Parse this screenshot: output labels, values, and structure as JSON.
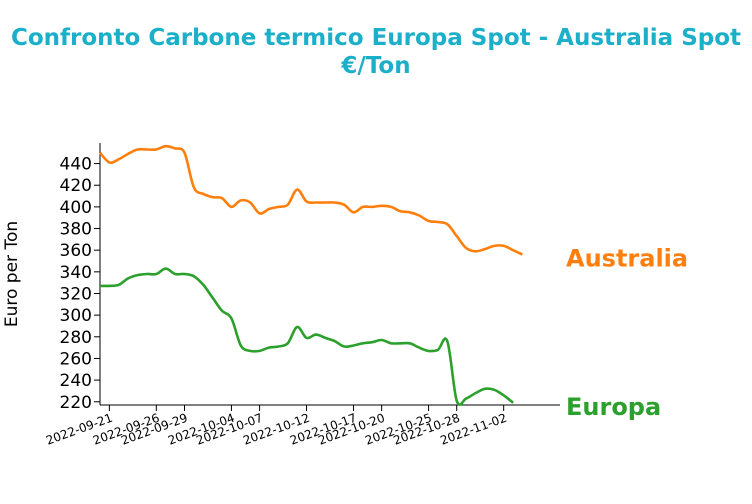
{
  "chart_data": {
    "type": "line",
    "title": "Confronto Carbone termico Europa Spot - Australia Spot",
    "subtitle": "€/Ton",
    "xlabel": "",
    "ylabel": "Euro per Ton",
    "ylim": [
      217,
      459
    ],
    "yticks": [
      220,
      240,
      260,
      280,
      300,
      320,
      340,
      360,
      380,
      400,
      420,
      440
    ],
    "xlim": [
      "2022-09-20",
      "2022-11-08"
    ],
    "xticks": [
      "2022-09-21",
      "2022-09-26",
      "2022-09-29",
      "2022-10-04",
      "2022-10-07",
      "2022-10-12",
      "2022-10-17",
      "2022-10-20",
      "2022-10-25",
      "2022-10-28",
      "2022-11-02"
    ],
    "grid": false,
    "legend": "inline-right",
    "series": [
      {
        "name": "Australia",
        "color": "#ff7f0e",
        "points": [
          [
            "2022-09-20",
            450
          ],
          [
            "2022-09-21",
            441
          ],
          [
            "2022-09-22",
            444
          ],
          [
            "2022-09-23",
            449
          ],
          [
            "2022-09-24",
            453
          ],
          [
            "2022-09-25",
            453
          ],
          [
            "2022-09-26",
            453
          ],
          [
            "2022-09-27",
            456
          ],
          [
            "2022-09-28",
            454
          ],
          [
            "2022-09-29",
            450
          ],
          [
            "2022-09-30",
            418
          ],
          [
            "2022-10-01",
            412
          ],
          [
            "2022-10-02",
            409
          ],
          [
            "2022-10-03",
            408
          ],
          [
            "2022-10-04",
            400
          ],
          [
            "2022-10-05",
            406
          ],
          [
            "2022-10-06",
            404
          ],
          [
            "2022-10-07",
            394
          ],
          [
            "2022-10-08",
            398
          ],
          [
            "2022-10-09",
            400
          ],
          [
            "2022-10-10",
            402
          ],
          [
            "2022-10-11",
            416
          ],
          [
            "2022-10-12",
            405
          ],
          [
            "2022-10-13",
            404
          ],
          [
            "2022-10-14",
            404
          ],
          [
            "2022-10-15",
            404
          ],
          [
            "2022-10-16",
            402
          ],
          [
            "2022-10-17",
            395
          ],
          [
            "2022-10-18",
            400
          ],
          [
            "2022-10-19",
            400
          ],
          [
            "2022-10-20",
            401
          ],
          [
            "2022-10-21",
            400
          ],
          [
            "2022-10-22",
            396
          ],
          [
            "2022-10-23",
            395
          ],
          [
            "2022-10-24",
            392
          ],
          [
            "2022-10-25",
            387
          ],
          [
            "2022-10-26",
            386
          ],
          [
            "2022-10-27",
            384
          ],
          [
            "2022-10-28",
            373
          ],
          [
            "2022-10-29",
            362
          ],
          [
            "2022-10-30",
            359
          ],
          [
            "2022-10-31",
            361
          ],
          [
            "2022-11-01",
            364
          ],
          [
            "2022-11-02",
            364
          ],
          [
            "2022-11-03",
            360
          ],
          [
            "2022-11-04",
            356
          ]
        ]
      },
      {
        "name": "Europa",
        "color": "#2ca02c",
        "points": [
          [
            "2022-09-20",
            327
          ],
          [
            "2022-09-21",
            327
          ],
          [
            "2022-09-22",
            328
          ],
          [
            "2022-09-23",
            334
          ],
          [
            "2022-09-24",
            337
          ],
          [
            "2022-09-25",
            338
          ],
          [
            "2022-09-26",
            338
          ],
          [
            "2022-09-27",
            343
          ],
          [
            "2022-09-28",
            338
          ],
          [
            "2022-09-29",
            338
          ],
          [
            "2022-09-30",
            336
          ],
          [
            "2022-10-01",
            328
          ],
          [
            "2022-10-02",
            316
          ],
          [
            "2022-10-03",
            304
          ],
          [
            "2022-10-04",
            297
          ],
          [
            "2022-10-05",
            272
          ],
          [
            "2022-10-06",
            267
          ],
          [
            "2022-10-07",
            267
          ],
          [
            "2022-10-08",
            270
          ],
          [
            "2022-10-09",
            271
          ],
          [
            "2022-10-10",
            274
          ],
          [
            "2022-10-11",
            289
          ],
          [
            "2022-10-12",
            279
          ],
          [
            "2022-10-13",
            282
          ],
          [
            "2022-10-14",
            279
          ],
          [
            "2022-10-15",
            276
          ],
          [
            "2022-10-16",
            271
          ],
          [
            "2022-10-17",
            272
          ],
          [
            "2022-10-18",
            274
          ],
          [
            "2022-10-19",
            275
          ],
          [
            "2022-10-20",
            277
          ],
          [
            "2022-10-21",
            274
          ],
          [
            "2022-10-22",
            274
          ],
          [
            "2022-10-23",
            274
          ],
          [
            "2022-10-24",
            270
          ],
          [
            "2022-10-25",
            267
          ],
          [
            "2022-10-26",
            268
          ],
          [
            "2022-10-27",
            276
          ],
          [
            "2022-10-28",
            221
          ],
          [
            "2022-10-29",
            223
          ],
          [
            "2022-10-30",
            228
          ],
          [
            "2022-10-31",
            232
          ],
          [
            "2022-11-01",
            231
          ],
          [
            "2022-11-02",
            226
          ],
          [
            "2022-11-03",
            219
          ]
        ]
      }
    ]
  }
}
